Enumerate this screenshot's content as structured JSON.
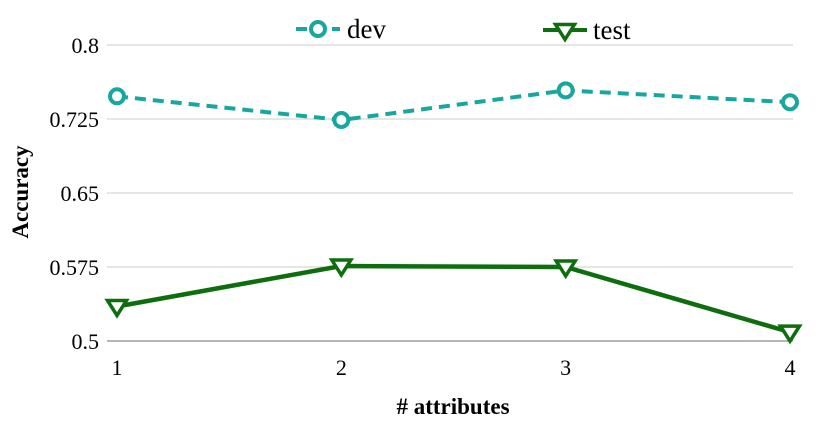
{
  "chart_data": {
    "type": "line",
    "title": "",
    "xlabel": "# attributes",
    "ylabel": "Accuracy",
    "x": [
      1,
      2,
      3,
      4
    ],
    "xtick_labels": [
      "1",
      "2",
      "3",
      "4"
    ],
    "ytick_values": [
      0.8,
      0.725,
      0.65,
      0.575,
      0.5
    ],
    "ytick_labels": [
      "0.8",
      "0.725",
      "0.65",
      "0.575",
      "0.5"
    ],
    "xlim": [
      1,
      4
    ],
    "ylim": [
      0.5,
      0.8
    ],
    "grid": "horizontal-only",
    "legend_position": "top-center",
    "series": [
      {
        "name": "dev",
        "values": [
          0.748,
          0.724,
          0.754,
          0.742
        ],
        "color": "#17a79f",
        "line_style": "dashed",
        "marker": "circle"
      },
      {
        "name": "test",
        "values": [
          0.535,
          0.576,
          0.575,
          0.509
        ],
        "color": "#0e6e0e",
        "line_style": "solid",
        "marker": "triangle-down"
      }
    ]
  },
  "colors": {
    "gridline": "#cccccc",
    "axis_line": "#8a8a8a",
    "marker_fill": "#ffffff",
    "text": "#000000",
    "background": "#ffffff"
  }
}
